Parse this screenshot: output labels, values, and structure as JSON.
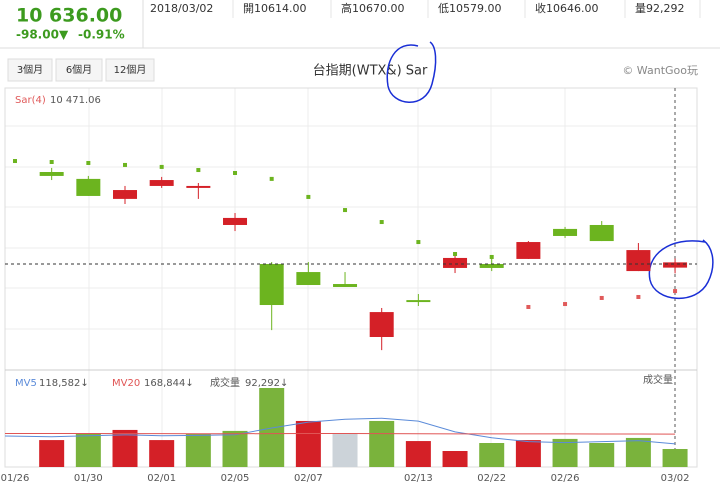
{
  "header": {
    "price": "10 636.00",
    "change": "-98.00▼",
    "change_pct": "-0.91%",
    "date": "2018/03/02",
    "open": "開10614.00",
    "high": "高10670.00",
    "low": "低10579.00",
    "close": "收10646.00",
    "volume": "量92,292"
  },
  "buttons": [
    "3個月",
    "6個月",
    "12個月"
  ],
  "chart_data": {
    "type": "candlestick",
    "title": "台指期(WTX&) Sar",
    "credit": "© WantGoo玩",
    "categories": [
      "01/26",
      null,
      "01/30",
      null,
      "02/01",
      null,
      "02/05",
      null,
      "02/07",
      null,
      null,
      "02/13",
      null,
      "02/22",
      null,
      "02/26",
      null,
      null,
      "03/02"
    ],
    "open": [
      null,
      11197,
      11155,
      11033,
      11112,
      11100,
      10874,
      10636,
      10587,
      10514,
      10191,
      10416,
      10612,
      10636,
      10667,
      10850,
      10874,
      10593,
      10614
    ],
    "high": [
      null,
      11222,
      11173,
      11112,
      11167,
      11130,
      10947,
      10648,
      10648,
      10587,
      10368,
      10453,
      10709,
      10673,
      10776,
      10862,
      10898,
      10764,
      10670
    ],
    "low": [
      null,
      11148,
      11051,
      11002,
      11100,
      11033,
      10837,
      10233,
      10508,
      10496,
      10111,
      10380,
      10581,
      10593,
      10667,
      10795,
      10776,
      10593,
      10579
    ],
    "close": [
      null,
      11173,
      11051,
      11087,
      11148,
      11112,
      10917,
      10386,
      10508,
      10496,
      10343,
      10404,
      10673,
      10612,
      10770,
      10807,
      10776,
      10721,
      10646
    ],
    "up_color": "#d42027",
    "down_color": "#6cb41f",
    "ylim": [
      10002,
      11697
    ],
    "last_price": 10636,
    "sar": {
      "name": "Sar(4)",
      "values": [
        11264,
        11258,
        11252,
        11240,
        11228,
        11209,
        11191,
        11155,
        11045,
        10965,
        10892,
        10770,
        10697,
        10679,
        10374,
        10392,
        10429,
        10435,
        10471.06
      ],
      "last_label": "10 471.06",
      "color": "#e05a5a"
    },
    "volume": {
      "name": "成交量",
      "label": "成交量",
      "values": [
        null,
        138000,
        174000,
        190000,
        138000,
        169000,
        185000,
        405000,
        236000,
        174000,
        236000,
        133000,
        82000,
        123000,
        138000,
        144000,
        123000,
        149000,
        92292
      ],
      "value_label": "92,292↓",
      "ylim": [
        0,
        487000
      ],
      "colors": [
        null,
        "#d42027",
        "#7ab33c",
        "#d42027",
        "#d42027",
        "#7ab33c",
        "#7ab33c",
        "#7ab33c",
        "#d42027",
        "#ccd3d9",
        "#7ab33c",
        "#d42027",
        "#d42027",
        "#7ab33c",
        "#d42027",
        "#7ab33c",
        "#7ab33c",
        "#7ab33c",
        "#7ab33c"
      ],
      "mv5": {
        "name": "MV5",
        "value_label": "118,582↓",
        "color": "#5b8bd9",
        "values": [
          159000,
          155000,
          160000,
          165000,
          160000,
          162000,
          165000,
          200000,
          230000,
          245000,
          250000,
          235000,
          180000,
          150000,
          130000,
          125000,
          130000,
          135000,
          118582
        ]
      },
      "mv20": {
        "name": "MV20",
        "value_label": "168,844↓",
        "color": "#e05555",
        "values": [
          172000,
          172000,
          171500,
          171000,
          171000,
          170500,
          170500,
          171000,
          171500,
          171500,
          171000,
          170500,
          170000,
          170000,
          169500,
          169500,
          169000,
          169000,
          168844
        ]
      }
    }
  }
}
